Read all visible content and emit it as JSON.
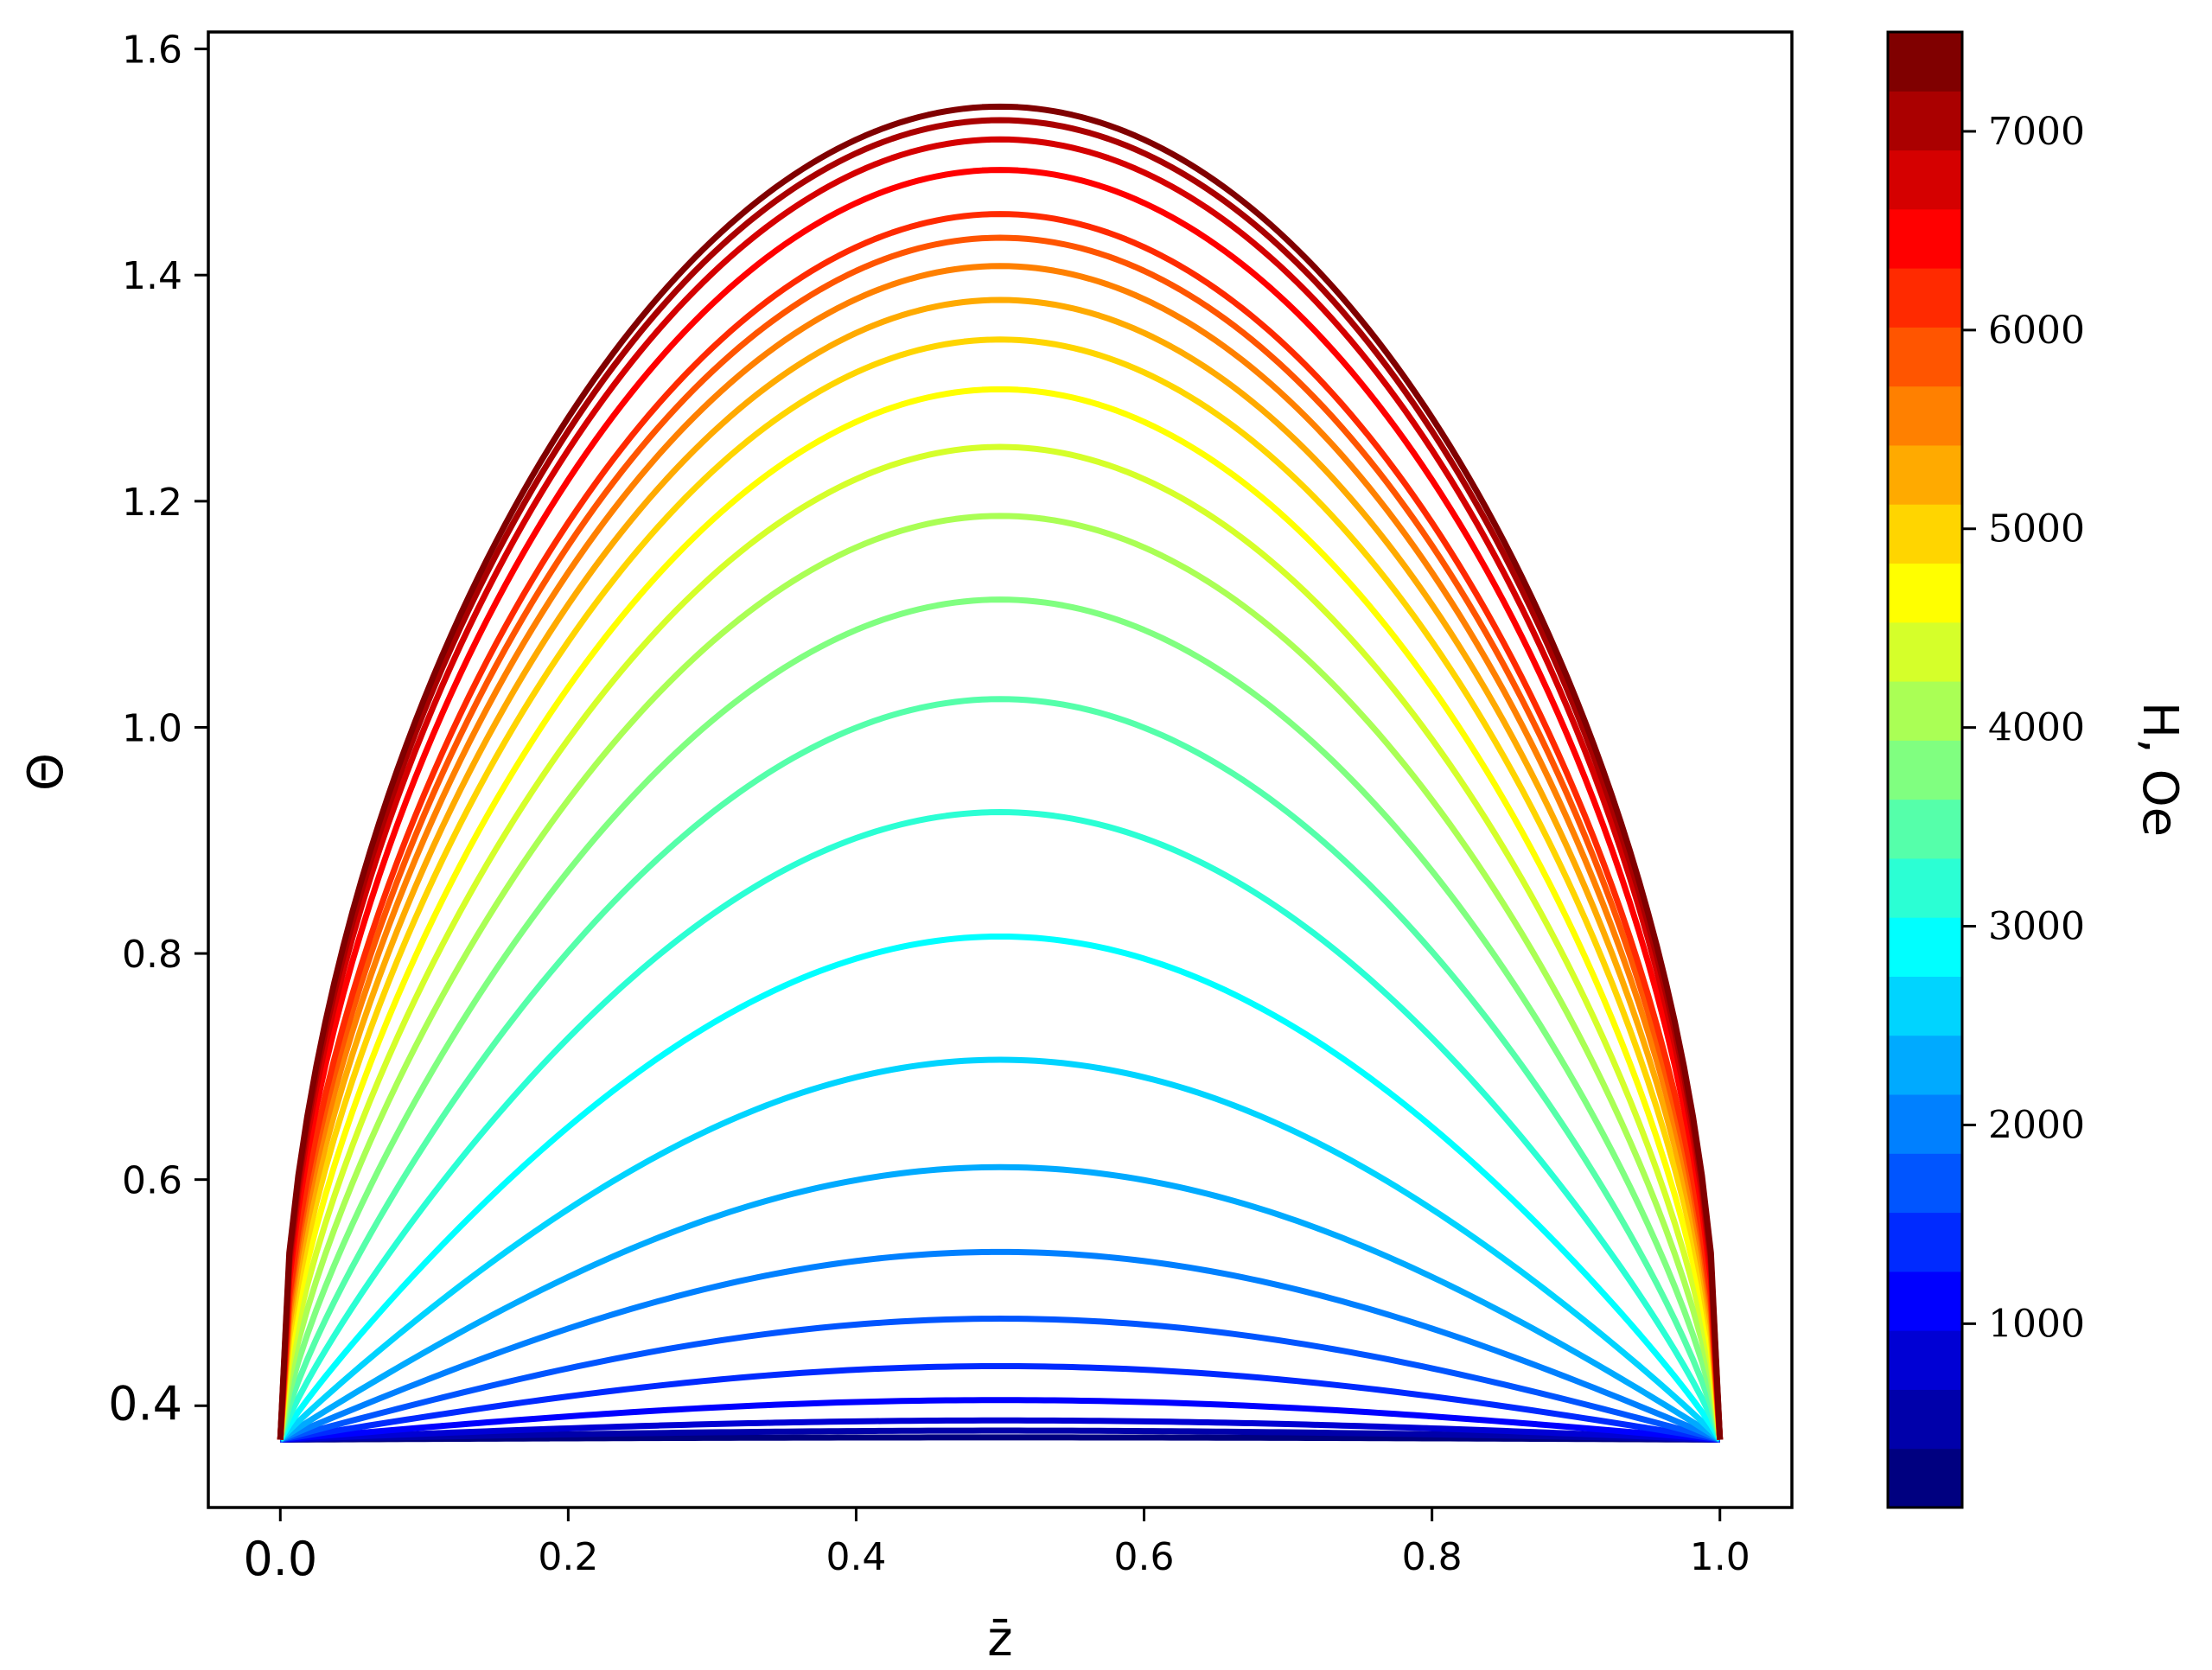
{
  "chart_data": {
    "type": "line",
    "title": "",
    "xlabel": "z̄",
    "ylabel": "Θ",
    "xlim": [
      -0.05,
      1.05
    ],
    "ylim": [
      0.31,
      1.615
    ],
    "x_ticks": [
      {
        "value": 0.0,
        "label": "0.0",
        "emphasis": true
      },
      {
        "value": 0.2,
        "label": "0.2"
      },
      {
        "value": 0.4,
        "label": "0.4"
      },
      {
        "value": 0.6,
        "label": "0.6"
      },
      {
        "value": 0.8,
        "label": "0.8"
      },
      {
        "value": 1.0,
        "label": "1.0"
      }
    ],
    "y_ticks": [
      {
        "value": 0.4,
        "label": "0.4",
        "emphasis": true
      },
      {
        "value": 0.6,
        "label": "0.6"
      },
      {
        "value": 0.8,
        "label": "0.8"
      },
      {
        "value": 1.0,
        "label": "1.0"
      },
      {
        "value": 1.2,
        "label": "1.2"
      },
      {
        "value": 1.4,
        "label": "1.4"
      },
      {
        "value": 1.6,
        "label": "1.6"
      }
    ],
    "boundary_value": 0.37,
    "x_range": [
      0.0,
      1.0
    ],
    "series": [
      {
        "field": 300,
        "peak": 0.372
      },
      {
        "field": 600,
        "peak": 0.378
      },
      {
        "field": 900,
        "peak": 0.387
      },
      {
        "field": 1200,
        "peak": 0.405
      },
      {
        "field": 1500,
        "peak": 0.435
      },
      {
        "field": 1800,
        "peak": 0.477
      },
      {
        "field": 2100,
        "peak": 0.536
      },
      {
        "field": 2400,
        "peak": 0.611
      },
      {
        "field": 2700,
        "peak": 0.706
      },
      {
        "field": 3000,
        "peak": 0.815
      },
      {
        "field": 3300,
        "peak": 0.925
      },
      {
        "field": 3600,
        "peak": 1.025
      },
      {
        "field": 3900,
        "peak": 1.113
      },
      {
        "field": 4200,
        "peak": 1.187
      },
      {
        "field": 4500,
        "peak": 1.248
      },
      {
        "field": 4800,
        "peak": 1.299
      },
      {
        "field": 5100,
        "peak": 1.343
      },
      {
        "field": 5400,
        "peak": 1.378
      },
      {
        "field": 5700,
        "peak": 1.408
      },
      {
        "field": 6000,
        "peak": 1.433
      },
      {
        "field": 6300,
        "peak": 1.454
      },
      {
        "field": 6600,
        "peak": 1.493
      },
      {
        "field": 6900,
        "peak": 1.52
      },
      {
        "field": 7200,
        "peak": 1.537
      },
      {
        "field": 7500,
        "peak": 1.549
      }
    ],
    "colorbar": {
      "label": "H, Oe",
      "range": [
        75,
        7500
      ],
      "levels": 25,
      "ticks": [
        {
          "value": 1000,
          "label": "1000"
        },
        {
          "value": 2000,
          "label": "2000"
        },
        {
          "value": 3000,
          "label": "3000"
        },
        {
          "value": 4000,
          "label": "4000"
        },
        {
          "value": 5000,
          "label": "5000"
        },
        {
          "value": 6000,
          "label": "6000"
        },
        {
          "value": 7000,
          "label": "7000"
        }
      ],
      "colormap": "jet"
    },
    "grid": false,
    "legend": "colorbar-right"
  }
}
